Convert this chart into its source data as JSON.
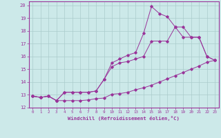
{
  "xlabel": "Windchill (Refroidissement éolien,°C)",
  "bg_color": "#cce9e9",
  "line_color": "#993399",
  "grid_color": "#aacccc",
  "xlim": [
    -0.5,
    23.5
  ],
  "ylim": [
    12,
    20.3
  ],
  "xticks": [
    0,
    1,
    2,
    3,
    4,
    5,
    6,
    7,
    8,
    9,
    10,
    11,
    12,
    13,
    14,
    15,
    16,
    17,
    18,
    19,
    20,
    21,
    22,
    23
  ],
  "yticks": [
    12,
    13,
    14,
    15,
    16,
    17,
    18,
    19,
    20
  ],
  "line1_x": [
    0,
    1,
    2,
    3,
    4,
    5,
    6,
    7,
    8,
    9,
    10,
    11,
    12,
    13,
    14,
    15,
    16,
    17,
    18,
    19,
    20,
    21,
    22,
    23
  ],
  "line1_y": [
    12.9,
    12.8,
    12.9,
    12.55,
    12.55,
    12.55,
    12.55,
    12.6,
    12.7,
    12.75,
    13.05,
    13.1,
    13.2,
    13.4,
    13.55,
    13.75,
    14.0,
    14.25,
    14.5,
    14.75,
    15.0,
    15.25,
    15.55,
    15.7
  ],
  "line2_x": [
    0,
    1,
    2,
    3,
    4,
    5,
    6,
    7,
    8,
    9,
    10,
    11,
    12,
    13,
    14,
    15,
    16,
    17,
    18,
    19,
    20,
    21,
    22,
    23
  ],
  "line2_y": [
    12.9,
    12.8,
    12.9,
    12.55,
    13.2,
    13.2,
    13.2,
    13.2,
    13.3,
    14.2,
    15.2,
    15.5,
    15.6,
    15.8,
    16.0,
    17.2,
    17.2,
    17.2,
    18.3,
    17.5,
    17.5,
    17.5,
    16.0,
    15.7
  ],
  "line3_x": [
    0,
    1,
    2,
    3,
    4,
    5,
    6,
    7,
    8,
    9,
    10,
    11,
    12,
    13,
    14,
    15,
    16,
    17,
    18,
    19,
    20,
    21,
    22,
    23
  ],
  "line3_y": [
    12.9,
    12.8,
    12.9,
    12.55,
    13.2,
    13.2,
    13.2,
    13.2,
    13.3,
    14.2,
    15.5,
    15.8,
    16.1,
    16.3,
    17.8,
    19.9,
    19.35,
    19.1,
    18.3,
    18.3,
    17.5,
    17.5,
    16.0,
    15.7
  ]
}
